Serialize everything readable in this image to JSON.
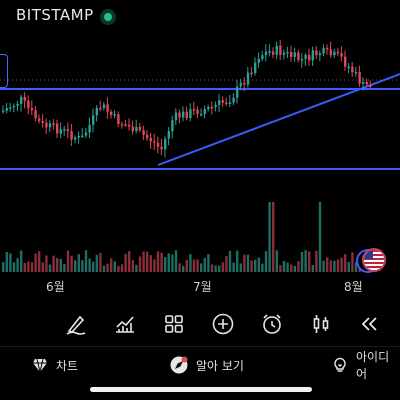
{
  "header": {
    "exchange": "BITSTAMP",
    "live_indicator_color": "#22c08a"
  },
  "chart": {
    "up_color": "#2aa198",
    "down_color": "#e0485a",
    "line_color": "#3b5cff",
    "x_labels": [
      "6월",
      "7월",
      "8월"
    ]
  },
  "toolbar": {
    "icons": [
      "draw-icon",
      "indicators-icon",
      "layouts-icon",
      "add-icon",
      "alert-clock-icon",
      "candle-type-icon",
      "rewind-icon"
    ]
  },
  "tabbar": {
    "tabs": [
      {
        "label": "차트",
        "icon": "gem-icon"
      },
      {
        "label": "알아 보기",
        "icon": "explore-icon"
      },
      {
        "label": "아이디어",
        "icon": "bulb-icon"
      }
    ]
  }
}
